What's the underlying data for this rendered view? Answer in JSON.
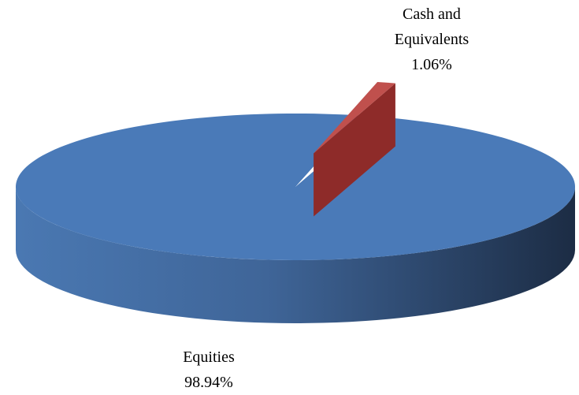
{
  "chart_data": {
    "type": "pie",
    "three_d": true,
    "categories": [
      "Equities",
      "Cash and Equivalents"
    ],
    "values": [
      98.94,
      1.06
    ],
    "value_labels": [
      "98.94%",
      "1.06%"
    ],
    "colors": [
      "#4a7ab8",
      "#c0504d"
    ],
    "exploded": [
      false,
      true
    ]
  }
}
